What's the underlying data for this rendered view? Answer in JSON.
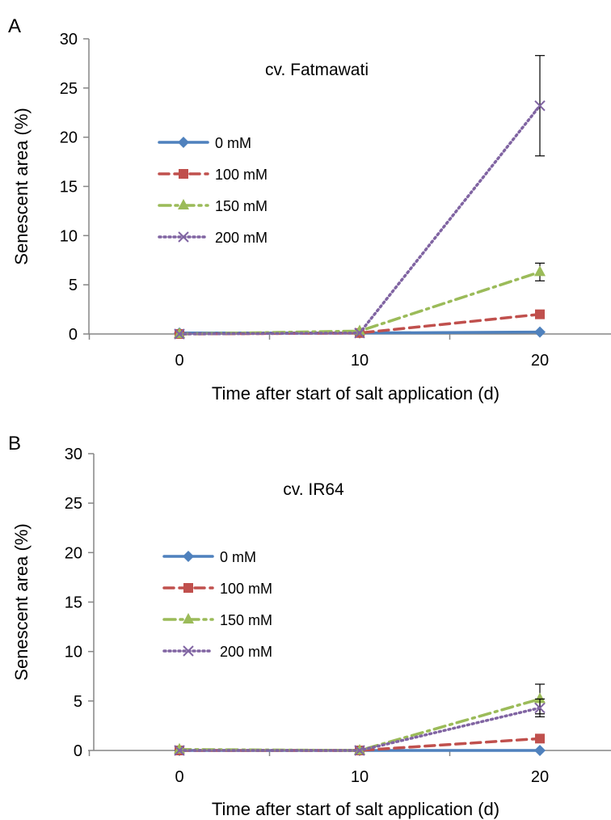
{
  "chart_data": [
    {
      "type": "line",
      "panel_label": "A",
      "title": "cv. Fatmawati",
      "xlabel": "Time after start of salt application (d)",
      "ylabel": "Senescent area (%)",
      "x": [
        0,
        10,
        20
      ],
      "x_ticks": [
        "0",
        "10",
        "20"
      ],
      "y_ticks": [
        "0",
        "5",
        "10",
        "15",
        "20",
        "25",
        "30"
      ],
      "ylim": [
        0,
        30
      ],
      "grid": false,
      "legend_position": "left",
      "series": [
        {
          "name": "0 mM",
          "values": [
            0.1,
            0.1,
            0.2
          ],
          "error": [
            0,
            0,
            0
          ],
          "color": "#4f81bd",
          "dash": "solid",
          "marker": "diamond"
        },
        {
          "name": "100 mM",
          "values": [
            0.0,
            0.1,
            2.0
          ],
          "error": [
            0,
            0,
            0
          ],
          "color": "#c0504d",
          "dash": "dash",
          "marker": "square"
        },
        {
          "name": "150 mM",
          "values": [
            0.0,
            0.3,
            6.3
          ],
          "error": [
            0,
            0,
            0.9
          ],
          "color": "#9bbb59",
          "dash": "dashdot",
          "marker": "triangle"
        },
        {
          "name": "200 mM",
          "values": [
            0.0,
            0.1,
            23.2
          ],
          "error": [
            0,
            0,
            5.1
          ],
          "color": "#8064a2",
          "dash": "dot",
          "marker": "x"
        }
      ]
    },
    {
      "type": "line",
      "panel_label": "B",
      "title": "cv. IR64",
      "xlabel": "Time after start of salt application (d)",
      "ylabel": "Senescent area (%)",
      "x": [
        0,
        10,
        20
      ],
      "x_ticks": [
        "0",
        "10",
        "20"
      ],
      "y_ticks": [
        "0",
        "5",
        "10",
        "15",
        "20",
        "25",
        "30"
      ],
      "ylim": [
        0,
        30
      ],
      "grid": false,
      "legend_position": "left",
      "series": [
        {
          "name": "0 mM",
          "values": [
            0.0,
            0.0,
            0.0
          ],
          "error": [
            0,
            0,
            0
          ],
          "color": "#4f81bd",
          "dash": "solid",
          "marker": "diamond"
        },
        {
          "name": "100 mM",
          "values": [
            0.0,
            0.0,
            1.2
          ],
          "error": [
            0,
            0,
            0
          ],
          "color": "#c0504d",
          "dash": "dash",
          "marker": "square"
        },
        {
          "name": "150 mM",
          "values": [
            0.1,
            0.0,
            5.2
          ],
          "error": [
            0,
            0,
            1.5
          ],
          "color": "#9bbb59",
          "dash": "dashdot",
          "marker": "triangle"
        },
        {
          "name": "200 mM",
          "values": [
            0.0,
            0.0,
            4.3
          ],
          "error": [
            0,
            0,
            0.9
          ],
          "color": "#8064a2",
          "dash": "dot",
          "marker": "x"
        }
      ]
    }
  ]
}
